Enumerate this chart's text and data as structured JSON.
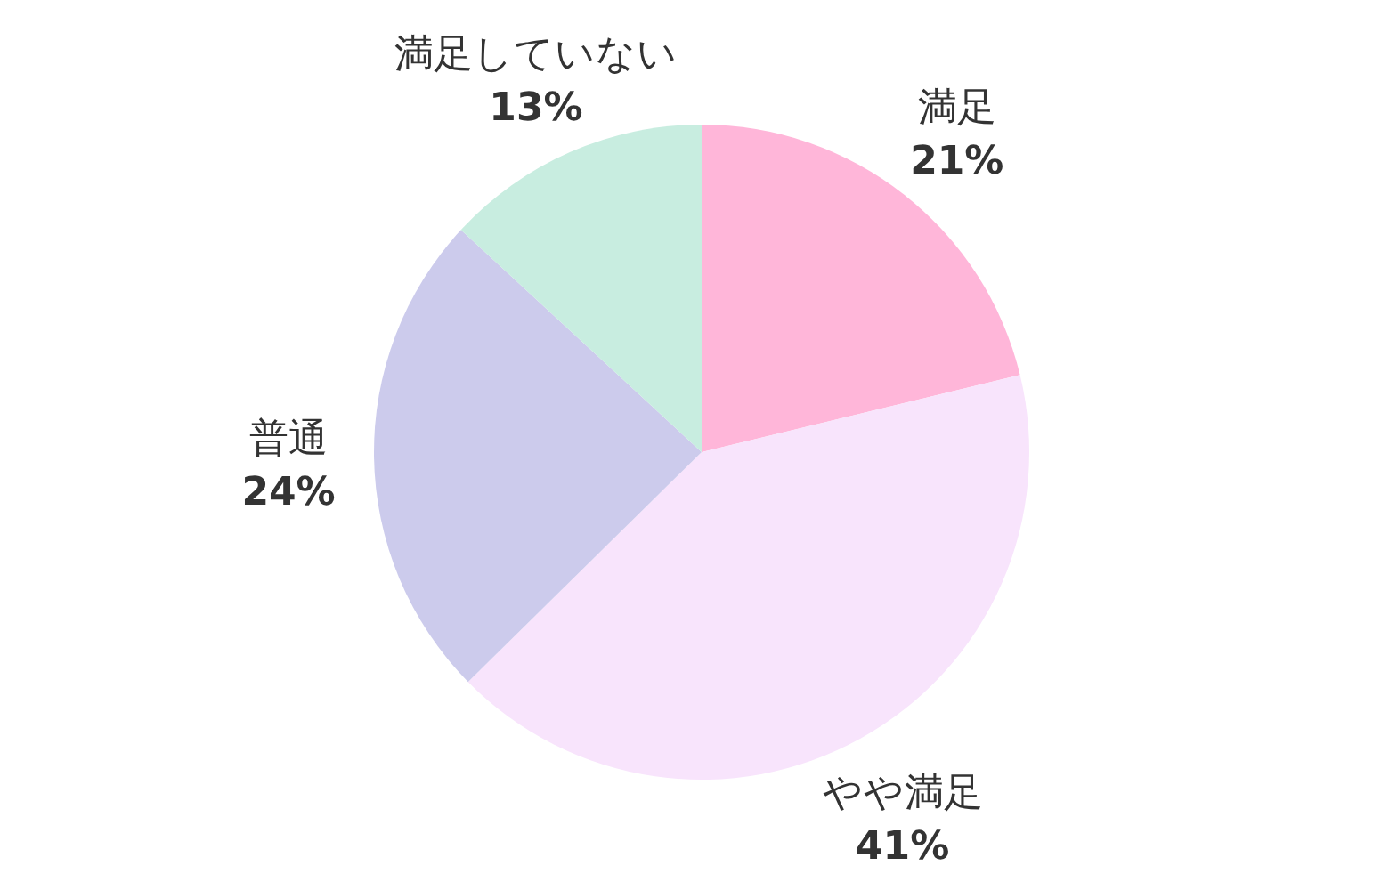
{
  "chart_data": {
    "type": "pie",
    "categories": [
      "満足",
      "やや満足",
      "普通",
      "満足していない"
    ],
    "values": [
      21,
      41,
      24,
      13
    ],
    "colors": [
      "#ffb6d9",
      "#f8e4fc",
      "#cccbec",
      "#c8ede0"
    ],
    "value_labels": [
      "21%",
      "41%",
      "24%",
      "13%"
    ],
    "legend": false
  }
}
